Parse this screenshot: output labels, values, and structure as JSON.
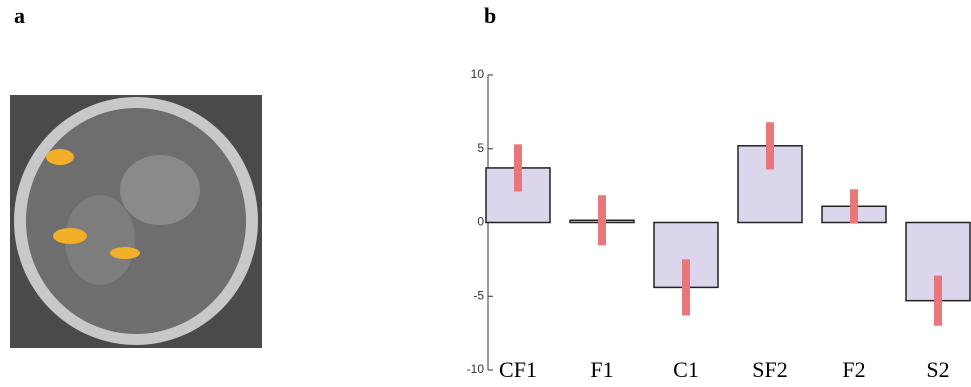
{
  "panel_labels": [
    "a",
    "b"
  ],
  "chart_data": {
    "type": "bar",
    "categories": [
      "CF1",
      "F1",
      "C1",
      "SF2",
      "F2",
      "S2"
    ],
    "values": [
      3.7,
      0.15,
      -4.4,
      5.2,
      1.1,
      -5.3
    ],
    "errors": [
      1.6,
      1.7,
      1.9,
      1.6,
      1.15,
      1.7
    ],
    "color": "#dcd6ec",
    "error_color": "#e9767a",
    "ylim": [
      -10,
      10
    ],
    "yticks": [
      -10,
      -5,
      0,
      5,
      10
    ]
  }
}
